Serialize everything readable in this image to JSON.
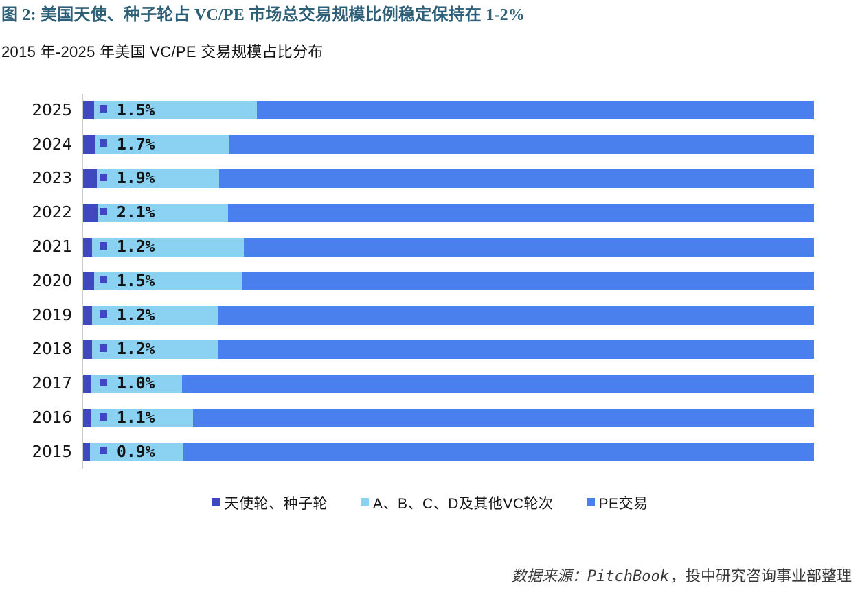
{
  "header": {
    "title": "图 2: 美国天使、种子轮占 VC/PE 市场总交易规模比例稳定保持在 1-2%",
    "subtitle": "2015 年-2025 年美国 VC/PE 交易规模占比分布",
    "title_color": "#2d5f78"
  },
  "chart_data": {
    "type": "bar",
    "orientation": "horizontal",
    "stacked": true,
    "title": "2015 年-2025 年美国 VC/PE 交易规模占比分布",
    "xlabel": "",
    "ylabel": "",
    "xlim": [
      0,
      100
    ],
    "unit": "percent of total US VC/PE deal value",
    "grid": false,
    "legend_position": "bottom",
    "axis_line_color": "#cbcbcb",
    "categories": [
      "2025",
      "2024",
      "2023",
      "2022",
      "2021",
      "2020",
      "2019",
      "2018",
      "2017",
      "2016",
      "2015"
    ],
    "series": [
      {
        "key": "angel-seed",
        "name": "天使轮、种子轮",
        "color": "#3f48c0",
        "values": [
          1.5,
          1.7,
          1.9,
          2.1,
          1.2,
          1.5,
          1.2,
          1.2,
          1.0,
          1.1,
          0.9
        ]
      },
      {
        "key": "vc-rounds",
        "name": "A、B、C、D及其他VC轮次",
        "color": "#8bd2f2",
        "values": [
          22.3,
          18.3,
          16.7,
          17.7,
          20.8,
          20.2,
          17.2,
          17.2,
          12.5,
          13.9,
          12.7
        ]
      },
      {
        "key": "pe-deals",
        "name": "PE交易",
        "color": "#4a80ee",
        "values": [
          76.2,
          80.0,
          81.4,
          80.2,
          78.0,
          78.3,
          81.6,
          81.6,
          86.5,
          85.0,
          86.4
        ]
      }
    ],
    "data_labels": [
      "1.5%",
      "1.7%",
      "1.9%",
      "2.1%",
      "1.2%",
      "1.5%",
      "1.2%",
      "1.2%",
      "1.0%",
      "1.1%",
      "0.9%"
    ],
    "data_label_series": "天使轮、种子轮",
    "data_label_legend_key_color": "#3f48c0"
  },
  "source": {
    "italic_part": "数据来源：PitchBook",
    "regular_part": "，投中研究咨询事业部整理"
  }
}
